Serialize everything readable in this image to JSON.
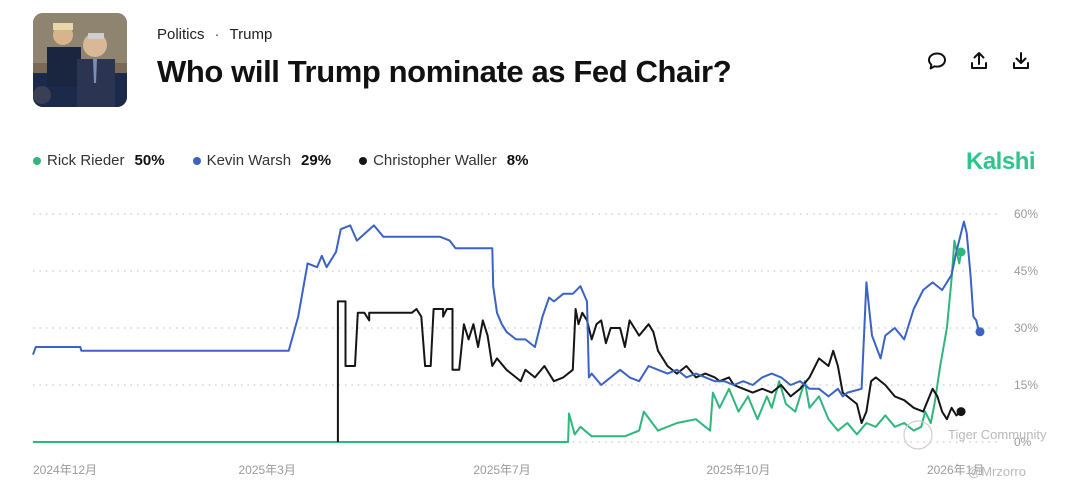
{
  "header": {
    "breadcrumb": [
      "Politics",
      "Trump"
    ],
    "breadcrumb_separator": "·",
    "title": "Who will Trump nominate as Fed Chair?"
  },
  "brand": {
    "name": "Kalshi",
    "color": "#2fc48a"
  },
  "watermark": {
    "community": "Tiger Community",
    "handle": "@Mrzorro"
  },
  "icons": [
    "comment-icon",
    "share-icon",
    "download-icon"
  ],
  "chart_data": {
    "type": "line",
    "title": "Who will Trump nominate as Fed Chair?",
    "x_ticks": [
      "2024年12月",
      "2025年3月",
      "2025年7月",
      "2025年10月",
      "2026年1月"
    ],
    "y_ticks": [
      "60%",
      "45%",
      "30%",
      "15%",
      "0%"
    ],
    "y_tick_values": [
      60,
      45,
      30,
      15,
      0
    ],
    "ylim": [
      0,
      60
    ],
    "xlim": [
      0,
      100
    ],
    "series": [
      {
        "name": "Rick Rieder",
        "current": "50%",
        "color": "#2fb67c",
        "points": [
          [
            0,
            0
          ],
          [
            56.5,
            0
          ],
          [
            56.6,
            7.5
          ],
          [
            57.2,
            2
          ],
          [
            57.8,
            4
          ],
          [
            59,
            1.5
          ],
          [
            62.5,
            1.5
          ],
          [
            64,
            3
          ],
          [
            64.5,
            8
          ],
          [
            66,
            3
          ],
          [
            68,
            5
          ],
          [
            70,
            6
          ],
          [
            71.5,
            3
          ],
          [
            71.8,
            13
          ],
          [
            72.5,
            9
          ],
          [
            73.5,
            14
          ],
          [
            74.5,
            8
          ],
          [
            75.5,
            12
          ],
          [
            76.5,
            6
          ],
          [
            77.5,
            12
          ],
          [
            78,
            9
          ],
          [
            78.8,
            16
          ],
          [
            79.5,
            10
          ],
          [
            80.5,
            8
          ],
          [
            81.5,
            16
          ],
          [
            82,
            9
          ],
          [
            83,
            12
          ],
          [
            84,
            6
          ],
          [
            85,
            3
          ],
          [
            86,
            5
          ],
          [
            87,
            2
          ],
          [
            88,
            5
          ],
          [
            89,
            4
          ],
          [
            90,
            7
          ],
          [
            91,
            4
          ],
          [
            92,
            5
          ],
          [
            93,
            3
          ],
          [
            93.8,
            4
          ],
          [
            94.2,
            8
          ],
          [
            94.8,
            5
          ],
          [
            95.2,
            10
          ],
          [
            95.8,
            20
          ],
          [
            96.5,
            30
          ],
          [
            97,
            43
          ],
          [
            97.3,
            53
          ],
          [
            97.8,
            47
          ],
          [
            98,
            50
          ]
        ]
      },
      {
        "name": "Kevin Warsh",
        "current": "29%",
        "color": "#3a63c4",
        "points": [
          [
            0,
            23
          ],
          [
            0.3,
            25
          ],
          [
            5,
            25
          ],
          [
            5.1,
            24
          ],
          [
            25.4,
            24
          ],
          [
            27,
            24
          ],
          [
            28,
            33
          ],
          [
            29,
            47
          ],
          [
            30,
            46
          ],
          [
            30.5,
            49
          ],
          [
            31,
            46
          ],
          [
            32,
            50
          ],
          [
            32.5,
            56
          ],
          [
            33.5,
            57
          ],
          [
            34.2,
            53
          ],
          [
            36,
            57
          ],
          [
            37,
            54
          ],
          [
            43,
            54
          ],
          [
            44,
            53
          ],
          [
            44.6,
            51
          ],
          [
            48.5,
            51
          ],
          [
            48.6,
            41
          ],
          [
            49,
            34
          ],
          [
            49.5,
            31
          ],
          [
            50,
            29
          ],
          [
            51,
            27
          ],
          [
            52,
            27
          ],
          [
            53,
            25
          ],
          [
            53.8,
            33
          ],
          [
            54.5,
            38
          ],
          [
            55,
            37
          ],
          [
            56,
            39
          ],
          [
            57,
            39
          ],
          [
            57.8,
            41
          ],
          [
            58.5,
            37
          ],
          [
            58.7,
            17
          ],
          [
            59,
            18
          ],
          [
            60,
            15
          ],
          [
            61,
            17
          ],
          [
            62,
            19
          ],
          [
            63,
            17
          ],
          [
            64,
            16
          ],
          [
            65,
            20
          ],
          [
            66,
            19
          ],
          [
            67,
            18
          ],
          [
            68,
            19
          ],
          [
            69,
            17
          ],
          [
            70,
            18
          ],
          [
            71,
            17
          ],
          [
            72,
            16
          ],
          [
            73,
            16
          ],
          [
            74,
            15
          ],
          [
            75,
            16
          ],
          [
            76,
            15
          ],
          [
            77,
            17
          ],
          [
            78,
            18
          ],
          [
            79,
            17
          ],
          [
            80,
            15
          ],
          [
            81,
            16
          ],
          [
            82,
            14
          ],
          [
            83,
            14
          ],
          [
            84,
            12
          ],
          [
            85,
            14
          ],
          [
            85.5,
            12
          ],
          [
            86,
            13
          ],
          [
            87.5,
            14
          ],
          [
            88,
            42
          ],
          [
            88.6,
            28
          ],
          [
            89.5,
            22
          ],
          [
            90,
            28
          ],
          [
            91,
            30
          ],
          [
            92,
            27
          ],
          [
            93,
            35
          ],
          [
            94,
            40
          ],
          [
            95,
            42
          ],
          [
            96,
            40
          ],
          [
            97,
            44
          ],
          [
            97.5,
            50
          ],
          [
            98.3,
            58
          ],
          [
            98.6,
            55
          ],
          [
            99,
            44
          ],
          [
            99.3,
            33
          ],
          [
            99.6,
            32
          ],
          [
            99.9,
            29
          ],
          [
            100,
            29
          ]
        ]
      },
      {
        "name": "Christopher Waller",
        "current": "8%",
        "color": "#151515",
        "points": [
          [
            32.2,
            0
          ],
          [
            32.2,
            37
          ],
          [
            33,
            37
          ],
          [
            33,
            20
          ],
          [
            34,
            20
          ],
          [
            34.3,
            34
          ],
          [
            35,
            34
          ],
          [
            35.5,
            32
          ],
          [
            35.5,
            34
          ],
          [
            40,
            34
          ],
          [
            40.5,
            35
          ],
          [
            41,
            33
          ],
          [
            41.4,
            20
          ],
          [
            42,
            20
          ],
          [
            42.3,
            35
          ],
          [
            43.3,
            35
          ],
          [
            43.3,
            33
          ],
          [
            43.7,
            35
          ],
          [
            44.3,
            35
          ],
          [
            44.3,
            19
          ],
          [
            45,
            19
          ],
          [
            45.5,
            31
          ],
          [
            46,
            27
          ],
          [
            46.5,
            31
          ],
          [
            47,
            25
          ],
          [
            47.5,
            32
          ],
          [
            48,
            28
          ],
          [
            48.5,
            20
          ],
          [
            49,
            22
          ],
          [
            50,
            19
          ],
          [
            51,
            17
          ],
          [
            51.5,
            16
          ],
          [
            52,
            19
          ],
          [
            53,
            17
          ],
          [
            54,
            20
          ],
          [
            55,
            16
          ],
          [
            56,
            17
          ],
          [
            57,
            19
          ],
          [
            57.3,
            35
          ],
          [
            57.6,
            31
          ],
          [
            58,
            34
          ],
          [
            58.5,
            32
          ],
          [
            59,
            27
          ],
          [
            59.5,
            31
          ],
          [
            60,
            32
          ],
          [
            60.5,
            26
          ],
          [
            61,
            30
          ],
          [
            62,
            30
          ],
          [
            62.5,
            25
          ],
          [
            63,
            32
          ],
          [
            64,
            28
          ],
          [
            65,
            31
          ],
          [
            65.5,
            29
          ],
          [
            66,
            24
          ],
          [
            67,
            20
          ],
          [
            68,
            18
          ],
          [
            69,
            20
          ],
          [
            70,
            17
          ],
          [
            71,
            18
          ],
          [
            72,
            17
          ],
          [
            72.5,
            16
          ],
          [
            73.5,
            17
          ],
          [
            74,
            15
          ],
          [
            75,
            14
          ],
          [
            76,
            13
          ],
          [
            77,
            14
          ],
          [
            78,
            13
          ],
          [
            79,
            15
          ],
          [
            80,
            12
          ],
          [
            81,
            14
          ],
          [
            82,
            17
          ],
          [
            83,
            22
          ],
          [
            84,
            20
          ],
          [
            84.5,
            24
          ],
          [
            85,
            20
          ],
          [
            85.5,
            13
          ],
          [
            86,
            12
          ],
          [
            87,
            10
          ],
          [
            87.5,
            5
          ],
          [
            88,
            8
          ],
          [
            88.5,
            16
          ],
          [
            89,
            17
          ],
          [
            90,
            15
          ],
          [
            91,
            12
          ],
          [
            92,
            11
          ],
          [
            93,
            9
          ],
          [
            94,
            8
          ],
          [
            95,
            14
          ],
          [
            95.5,
            12
          ],
          [
            96,
            8
          ],
          [
            96.5,
            6
          ],
          [
            97,
            9
          ],
          [
            97.5,
            7
          ],
          [
            98,
            8
          ]
        ]
      }
    ]
  }
}
